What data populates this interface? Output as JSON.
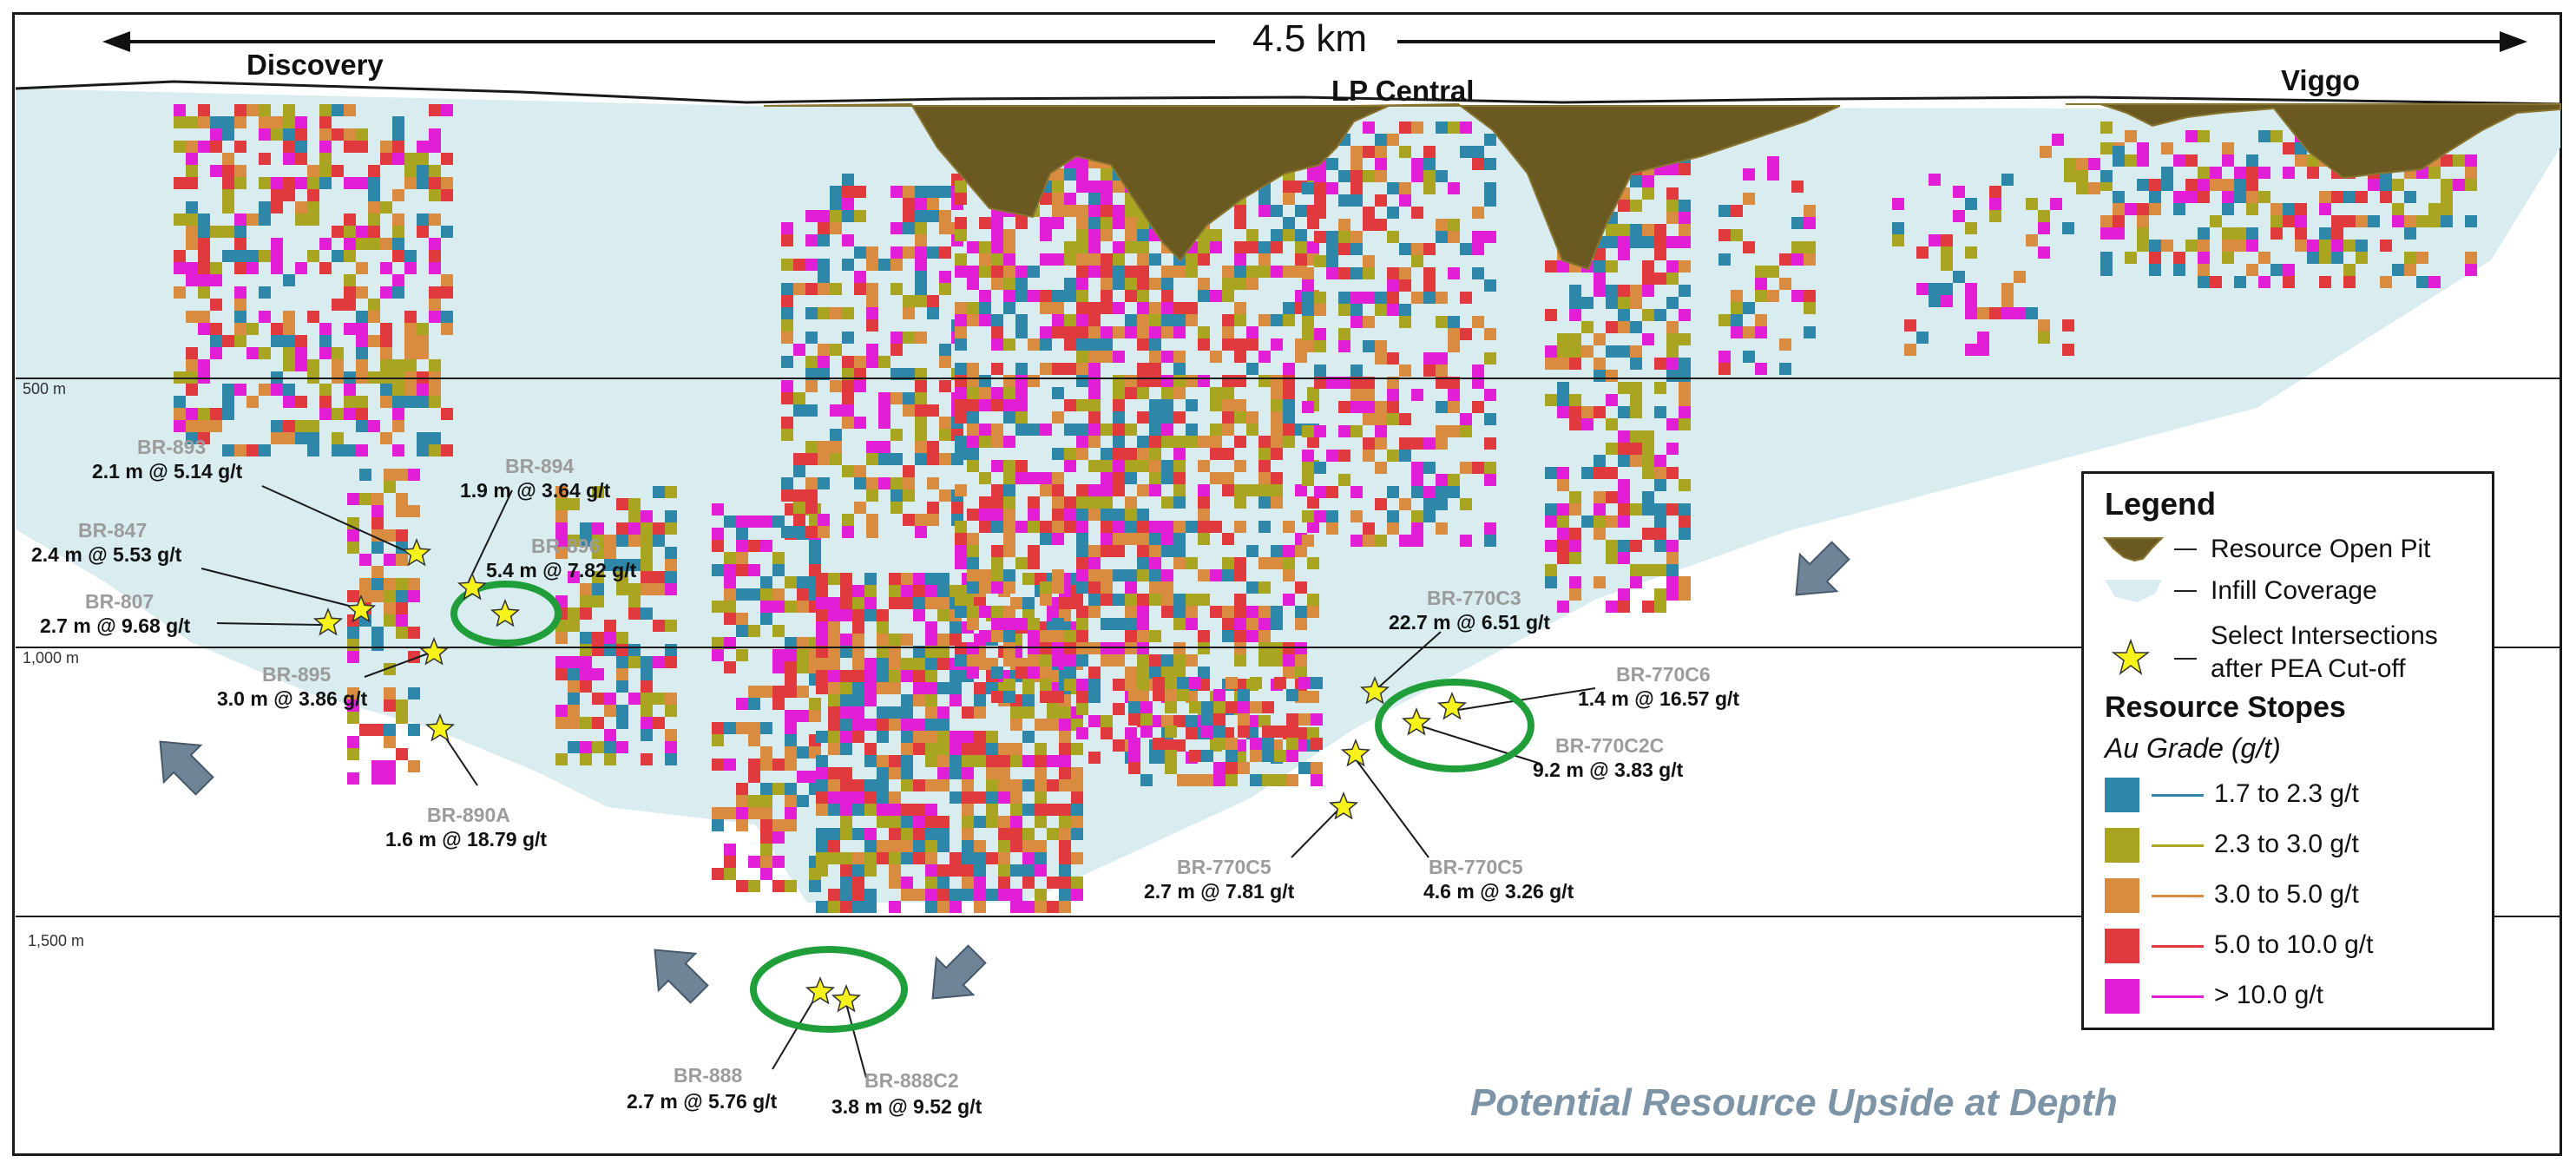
{
  "scale": {
    "label": "4.5 km"
  },
  "regions": {
    "discovery": "Discovery",
    "lp_central": "LP Central",
    "viggo": "Viggo"
  },
  "depths": {
    "d500": "500 m",
    "d1000": "1,000 m",
    "d1500": "1,500 m"
  },
  "intersections": [
    {
      "hole": "BR-893",
      "result": "2.1 m @ 5.14 g/t"
    },
    {
      "hole": "BR-894",
      "result": "1.9 m @ 3.64 g/t"
    },
    {
      "hole": "BR-847",
      "result": "2.4 m @ 5.53 g/t"
    },
    {
      "hole": "BR-896",
      "result": "5.4 m @ 7.82 g/t"
    },
    {
      "hole": "BR-807",
      "result": "2.7 m @ 9.68 g/t"
    },
    {
      "hole": "BR-895",
      "result": "3.0 m @ 3.86 g/t"
    },
    {
      "hole": "BR-890A",
      "result": "1.6 m @ 18.79 g/t"
    },
    {
      "hole": "BR-770C3",
      "result": "22.7 m @ 6.51 g/t"
    },
    {
      "hole": "BR-770C6",
      "result": "1.4 m @ 16.57 g/t"
    },
    {
      "hole": "BR-770C2C",
      "result": "9.2 m @ 3.83 g/t"
    },
    {
      "hole": "BR-770C5",
      "result": "2.7 m @ 7.81 g/t"
    },
    {
      "hole": "BR-770C5",
      "result": "4.6 m @ 3.26 g/t"
    },
    {
      "hole": "BR-888",
      "result": "2.7 m @ 5.76 g/t"
    },
    {
      "hole": "BR-888C2",
      "result": "3.8 m @ 9.52 g/t"
    }
  ],
  "upside_text": "Potential Resource Upside at Depth",
  "legend": {
    "title": "Legend",
    "open_pit": "Resource Open Pit",
    "infill": "Infill Coverage",
    "select_line1": "Select Intersections",
    "select_line2": "after PEA Cut-off",
    "stopes_title": "Resource Stopes",
    "grade_title": "Au Grade (g/t)",
    "grades": [
      {
        "label": "1.7 to 2.3 g/t",
        "color": "#2e87a8"
      },
      {
        "label": "2.3 to 3.0 g/t",
        "color": "#a9a520"
      },
      {
        "label": "3.0 to 5.0 g/t",
        "color": "#d98c3f"
      },
      {
        "label": "5.0 to 10.0 g/t",
        "color": "#e0393e"
      },
      {
        "label": "> 10.0 g/t",
        "color": "#e21fd6"
      }
    ]
  },
  "colors": {
    "infill": "#d9ecf0",
    "pit": "#6a5a22",
    "star": "#f7f31a",
    "highlight_ellipse": "#1f9e3a",
    "arrow": "#6f8597"
  }
}
